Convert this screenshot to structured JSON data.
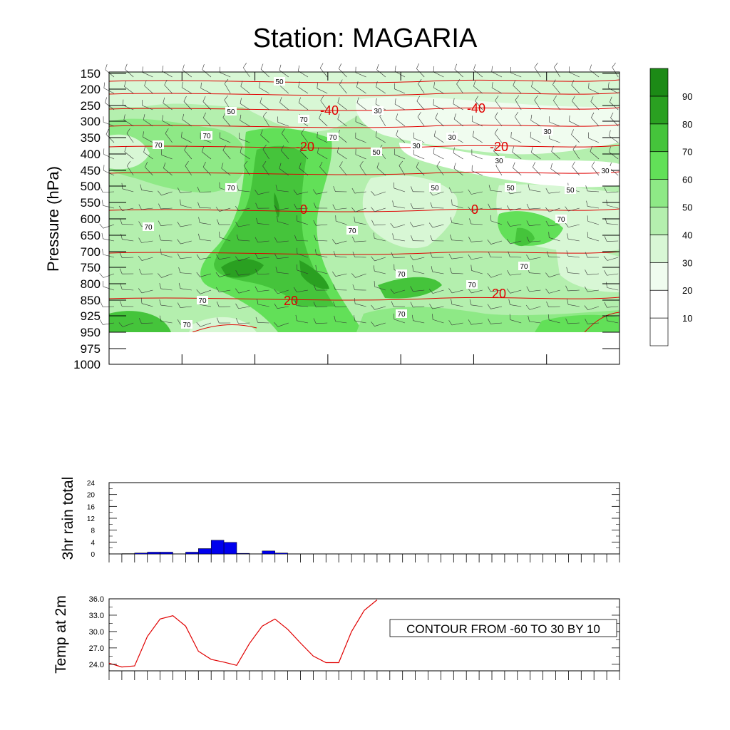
{
  "title": "Station: MAGARIA",
  "colors": {
    "contour_fill_levels": [
      "#ffffff",
      "#ffffff",
      "#ffffff",
      "#f0fcef",
      "#d8f7d5",
      "#b4efae",
      "#8ee986",
      "#62e058",
      "#45c43b",
      "#2aa021",
      "#1c8a16"
    ],
    "isotherm": "#e00000",
    "rain_bar": "#0000ee",
    "temp_line": "#e00000"
  },
  "chart_data": [
    {
      "type": "heatmap",
      "ylabel": "Pressure (hPa)",
      "yticks": [
        "150",
        "200",
        "250",
        "300",
        "350",
        "400",
        "450",
        "500",
        "550",
        "600",
        "650",
        "700",
        "750",
        "800",
        "850",
        "925",
        "950",
        "975",
        "1000"
      ],
      "colorbar": {
        "levels": [
          10,
          20,
          30,
          40,
          50,
          60,
          70,
          80,
          90
        ],
        "labels": [
          "10",
          "20",
          "30",
          "40",
          "50",
          "60",
          "70",
          "80",
          "90"
        ]
      },
      "rh_contour_labels": [
        {
          "text": "50"
        },
        {
          "text": "50"
        },
        {
          "text": "70"
        },
        {
          "text": "30"
        },
        {
          "text": "70"
        },
        {
          "text": "70"
        },
        {
          "text": "70"
        },
        {
          "text": "30"
        },
        {
          "text": "30"
        },
        {
          "text": "50"
        },
        {
          "text": "30"
        },
        {
          "text": "30"
        },
        {
          "text": "30"
        },
        {
          "text": "70"
        },
        {
          "text": "50"
        },
        {
          "text": "50"
        },
        {
          "text": "50"
        },
        {
          "text": "70"
        },
        {
          "text": "70"
        },
        {
          "text": "70"
        },
        {
          "text": "70"
        },
        {
          "text": "70"
        },
        {
          "text": "70"
        },
        {
          "text": "70"
        },
        {
          "text": "70"
        },
        {
          "text": "70"
        }
      ],
      "isotherm_labels": [
        {
          "text": "-40"
        },
        {
          "text": "-40"
        },
        {
          "text": "-20"
        },
        {
          "text": "-20"
        },
        {
          "text": "0"
        },
        {
          "text": "0"
        },
        {
          "text": "20"
        },
        {
          "text": "20"
        }
      ],
      "isotherms_degC": [
        -60,
        -50,
        -40,
        -30,
        -20,
        -10,
        0,
        10,
        20
      ]
    },
    {
      "type": "bar",
      "ylabel": "3hr rain total",
      "ylim": [
        0,
        24
      ],
      "yticks": [
        "0",
        "4",
        "8",
        "12",
        "16",
        "20",
        "24"
      ],
      "values": [
        0,
        0.1,
        0.3,
        0.6,
        0.6,
        0,
        0.6,
        1.8,
        4.6,
        3.9,
        0.2,
        0,
        1.0,
        0.3,
        0,
        0,
        0,
        0,
        0,
        0,
        0,
        0,
        0,
        0,
        0,
        0,
        0,
        0,
        0,
        0,
        0,
        0,
        0,
        0,
        0,
        0,
        0,
        0,
        0,
        0
      ]
    },
    {
      "type": "line",
      "ylabel": "Temp at 2m",
      "ylim": [
        22.8,
        36.0
      ],
      "yticks": [
        "24.0",
        "27.0",
        "30.0",
        "33.0",
        "36.0"
      ],
      "values": [
        24.2,
        23.5,
        23.7,
        29.1,
        32.3,
        32.9,
        31.0,
        26.4,
        24.9,
        24.4,
        23.8,
        27.8,
        31.0,
        32.3,
        30.4,
        27.9,
        25.5,
        24.3,
        24.3,
        30.0,
        33.9,
        35.8
      ],
      "annotation": "CONTOUR FROM -60 TO 30 BY 10"
    }
  ]
}
